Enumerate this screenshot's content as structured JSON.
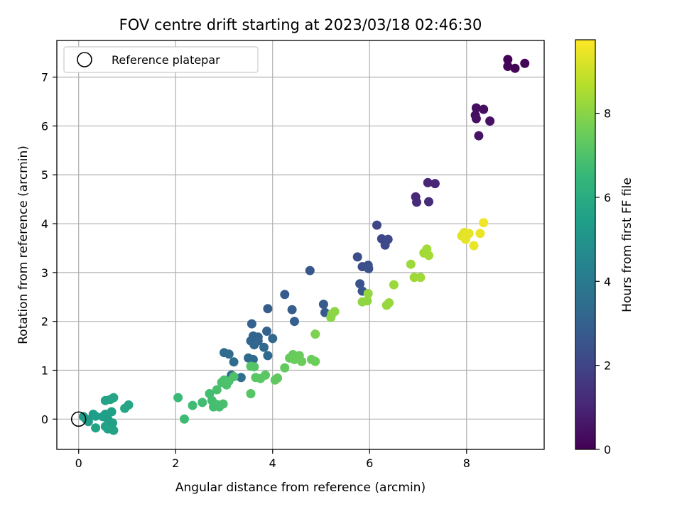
{
  "chart_data": {
    "type": "scatter",
    "title": "FOV centre drift starting at 2023/03/18 02:46:30",
    "xlabel": "Angular distance from reference (arcmin)",
    "ylabel": "Rotation from reference (arcmin)",
    "xlim": [
      -0.45,
      9.6
    ],
    "ylim": [
      -0.62,
      7.75
    ],
    "xticks": [
      0,
      2,
      4,
      6,
      8
    ],
    "yticks": [
      0,
      1,
      2,
      3,
      4,
      5,
      6,
      7
    ],
    "grid": true,
    "legend": {
      "placement": "top-left",
      "entries": [
        "Reference platepar"
      ]
    },
    "reference_point": {
      "name": "Reference platepar",
      "x": 0,
      "y": 0,
      "marker": "hollow circle"
    },
    "colorbar": {
      "label": "Hours from first FF file",
      "colormap": "viridis",
      "range": [
        0,
        9.75
      ],
      "ticks": [
        0,
        2,
        4,
        6,
        8
      ]
    },
    "colors": {
      "viridis": [
        "#440154",
        "#482878",
        "#3e4a89",
        "#31688e",
        "#26828e",
        "#1f9e89",
        "#35b779",
        "#6ece58",
        "#b5de2b",
        "#fde725"
      ]
    },
    "series": [
      {
        "points": [
          [
            8.85,
            7.36,
            0.05
          ],
          [
            8.85,
            7.22,
            0.08
          ],
          [
            9.0,
            7.18,
            0.1
          ],
          [
            9.2,
            7.28,
            0.12
          ],
          [
            8.2,
            6.37,
            0.35
          ],
          [
            8.35,
            6.34,
            0.38
          ],
          [
            8.18,
            6.22,
            0.4
          ],
          [
            8.2,
            6.15,
            0.42
          ],
          [
            8.48,
            6.1,
            0.45
          ],
          [
            8.25,
            5.8,
            0.5
          ],
          [
            7.2,
            4.84,
            1.0
          ],
          [
            7.35,
            4.82,
            1.05
          ],
          [
            6.95,
            4.55,
            1.1
          ],
          [
            6.97,
            4.44,
            1.15
          ],
          [
            7.22,
            4.45,
            1.2
          ],
          [
            6.15,
            3.97,
            2.0
          ],
          [
            6.25,
            3.69,
            2.05
          ],
          [
            6.38,
            3.68,
            2.1
          ],
          [
            6.32,
            3.56,
            2.15
          ],
          [
            5.75,
            3.32,
            2.3
          ],
          [
            5.85,
            3.12,
            2.35
          ],
          [
            5.97,
            3.15,
            2.4
          ],
          [
            5.98,
            3.08,
            2.45
          ],
          [
            5.8,
            2.77,
            2.5
          ],
          [
            5.85,
            2.62,
            2.55
          ],
          [
            4.77,
            3.04,
            2.6
          ],
          [
            5.05,
            2.35,
            2.7
          ],
          [
            5.08,
            2.18,
            2.75
          ],
          [
            4.25,
            2.55,
            2.8
          ],
          [
            4.4,
            2.24,
            2.85
          ],
          [
            3.9,
            2.26,
            2.9
          ],
          [
            4.45,
            2.0,
            2.95
          ],
          [
            3.57,
            1.95,
            3.0
          ],
          [
            3.88,
            1.8,
            3.05
          ],
          [
            3.6,
            1.7,
            3.1
          ],
          [
            3.7,
            1.68,
            3.12
          ],
          [
            3.55,
            1.6,
            3.15
          ],
          [
            3.7,
            1.6,
            3.18
          ],
          [
            4.0,
            1.65,
            3.2
          ],
          [
            3.62,
            1.52,
            3.22
          ],
          [
            3.82,
            1.47,
            3.25
          ],
          [
            3.5,
            1.25,
            3.3
          ],
          [
            3.6,
            1.22,
            3.32
          ],
          [
            3.9,
            1.3,
            3.35
          ],
          [
            3.0,
            1.36,
            3.4
          ],
          [
            3.1,
            1.33,
            3.42
          ],
          [
            3.2,
            1.17,
            3.45
          ],
          [
            3.35,
            0.85,
            3.5
          ],
          [
            3.15,
            0.9,
            3.52
          ],
          [
            0.1,
            0.05,
            5.3
          ],
          [
            0.15,
            0.0,
            5.32
          ],
          [
            0.2,
            -0.05,
            5.35
          ],
          [
            0.3,
            0.1,
            5.38
          ],
          [
            0.35,
            0.06,
            5.4
          ],
          [
            0.5,
            0.05,
            5.42
          ],
          [
            0.55,
            0.1,
            5.45
          ],
          [
            0.6,
            0.0,
            5.48
          ],
          [
            0.68,
            0.15,
            5.5
          ],
          [
            0.7,
            -0.08,
            5.52
          ],
          [
            0.55,
            -0.15,
            5.55
          ],
          [
            0.6,
            -0.2,
            5.58
          ],
          [
            0.72,
            -0.23,
            5.6
          ],
          [
            0.35,
            -0.18,
            5.62
          ],
          [
            0.55,
            0.38,
            5.65
          ],
          [
            0.65,
            0.4,
            5.68
          ],
          [
            0.72,
            0.44,
            5.7
          ],
          [
            0.95,
            0.22,
            5.72
          ],
          [
            1.03,
            0.29,
            5.75
          ],
          [
            2.05,
            0.44,
            6.6
          ],
          [
            2.18,
            0.0,
            6.65
          ],
          [
            2.35,
            0.28,
            6.7
          ],
          [
            2.55,
            0.34,
            6.72
          ],
          [
            2.7,
            0.52,
            6.75
          ],
          [
            2.75,
            0.38,
            6.78
          ],
          [
            2.78,
            0.25,
            6.8
          ],
          [
            2.85,
            0.3,
            6.82
          ],
          [
            2.9,
            0.25,
            6.84
          ],
          [
            2.98,
            0.31,
            6.86
          ],
          [
            2.85,
            0.6,
            6.88
          ],
          [
            2.95,
            0.75,
            6.9
          ],
          [
            3.0,
            0.8,
            6.92
          ],
          [
            3.05,
            0.7,
            6.94
          ],
          [
            3.1,
            0.78,
            6.96
          ],
          [
            3.2,
            0.87,
            6.98
          ],
          [
            3.55,
            1.08,
            7.1
          ],
          [
            3.62,
            1.07,
            7.12
          ],
          [
            3.55,
            0.52,
            7.15
          ],
          [
            3.65,
            0.85,
            7.18
          ],
          [
            3.75,
            0.83,
            7.2
          ],
          [
            3.85,
            0.9,
            7.22
          ],
          [
            4.05,
            0.8,
            7.3
          ],
          [
            4.1,
            0.84,
            7.32
          ],
          [
            4.25,
            1.05,
            7.35
          ],
          [
            4.35,
            1.25,
            7.4
          ],
          [
            4.42,
            1.32,
            7.42
          ],
          [
            4.5,
            1.28,
            7.44
          ],
          [
            4.55,
            1.3,
            7.46
          ],
          [
            4.6,
            1.18,
            7.48
          ],
          [
            4.45,
            1.22,
            7.5
          ],
          [
            4.8,
            1.22,
            7.52
          ],
          [
            4.88,
            1.18,
            7.54
          ],
          [
            4.88,
            1.74,
            7.8
          ],
          [
            5.2,
            2.08,
            8.0
          ],
          [
            5.22,
            2.15,
            8.02
          ],
          [
            5.28,
            2.2,
            8.05
          ],
          [
            5.85,
            2.4,
            8.1
          ],
          [
            5.95,
            2.42,
            8.12
          ],
          [
            5.97,
            2.57,
            8.15
          ],
          [
            6.35,
            2.33,
            8.2
          ],
          [
            6.4,
            2.38,
            8.22
          ],
          [
            6.5,
            2.75,
            8.25
          ],
          [
            6.85,
            3.17,
            8.3
          ],
          [
            6.92,
            2.9,
            8.32
          ],
          [
            7.05,
            2.9,
            8.34
          ],
          [
            7.12,
            3.4,
            8.36
          ],
          [
            7.18,
            3.48,
            8.38
          ],
          [
            7.22,
            3.35,
            8.4
          ],
          [
            7.9,
            3.75,
            9.3
          ],
          [
            7.95,
            3.82,
            9.35
          ],
          [
            8.02,
            3.78,
            9.38
          ],
          [
            7.98,
            3.68,
            9.4
          ],
          [
            8.05,
            3.8,
            9.42
          ],
          [
            8.15,
            3.55,
            9.45
          ],
          [
            8.28,
            3.8,
            9.5
          ],
          [
            8.35,
            4.02,
            9.55
          ]
        ]
      }
    ]
  }
}
